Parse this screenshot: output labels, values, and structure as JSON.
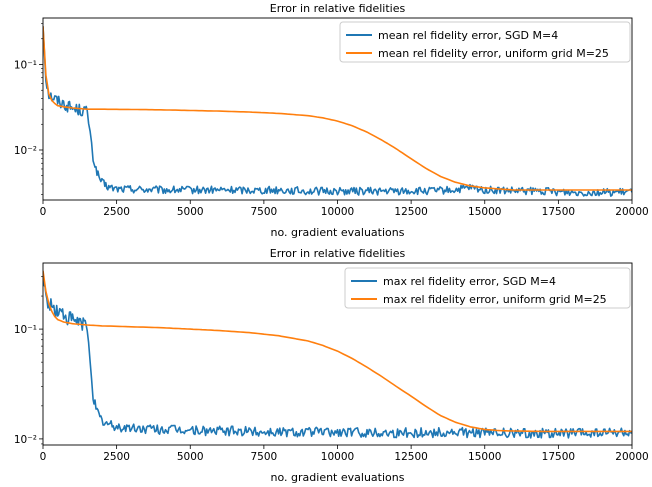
{
  "chart_data": [
    {
      "type": "line",
      "title": "Error in relative fidelities",
      "xlabel": "no. gradient evaluations",
      "ylabel": "",
      "yscale": "log",
      "xlim": [
        0,
        20000
      ],
      "ylim": [
        0.0026,
        0.35
      ],
      "xticks": [
        0,
        2500,
        5000,
        7500,
        10000,
        12500,
        15000,
        17500,
        20000
      ],
      "xtick_labels": [
        "0",
        "2500",
        "5000",
        "7500",
        "10000",
        "12500",
        "15000",
        "17500",
        "20000"
      ],
      "yticks_major": [
        0.01,
        0.1
      ],
      "ytick_labels": [
        "10⁻²",
        "10⁻¹"
      ],
      "grid": false,
      "legend_position": "top-right",
      "series": [
        {
          "name": "mean rel fidelity error, SGD M=4",
          "color": "#1f77b4",
          "x": [
            0,
            100,
            200,
            300,
            400,
            500,
            600,
            700,
            800,
            900,
            1000,
            1100,
            1200,
            1300,
            1400,
            1500,
            1550,
            1600,
            1650,
            1700,
            1800,
            1900,
            2000,
            2100,
            2200,
            2300,
            2500,
            3000,
            4000,
            5000,
            6000,
            7000,
            8000,
            9000,
            10000,
            11000,
            12000,
            13000,
            14000,
            14500,
            15000,
            16000,
            17000,
            18000,
            19000,
            20000
          ],
          "y": [
            0.28,
            0.07,
            0.045,
            0.042,
            0.04,
            0.038,
            0.036,
            0.035,
            0.033,
            0.032,
            0.031,
            0.03,
            0.03,
            0.029,
            0.029,
            0.028,
            0.022,
            0.016,
            0.011,
            0.008,
            0.006,
            0.0048,
            0.0042,
            0.0039,
            0.0037,
            0.0036,
            0.0035,
            0.0035,
            0.0034,
            0.0034,
            0.0034,
            0.0034,
            0.0034,
            0.0033,
            0.0033,
            0.0033,
            0.0033,
            0.0033,
            0.0034,
            0.0036,
            0.0034,
            0.0033,
            0.0033,
            0.0032,
            0.0032,
            0.0032
          ]
        },
        {
          "name": "mean rel fidelity error, uniform grid M=25",
          "color": "#ff7f0e",
          "x": [
            0,
            100,
            200,
            300,
            400,
            500,
            700,
            1000,
            1500,
            2000,
            3000,
            4000,
            5000,
            6000,
            7000,
            8000,
            9000,
            9500,
            10000,
            10500,
            11000,
            11500,
            12000,
            12500,
            13000,
            13500,
            14000,
            14500,
            15000,
            15500,
            16000,
            17000,
            18000,
            19000,
            20000
          ],
          "y": [
            0.28,
            0.075,
            0.045,
            0.038,
            0.035,
            0.033,
            0.032,
            0.031,
            0.03,
            0.03,
            0.0298,
            0.0295,
            0.029,
            0.0285,
            0.0278,
            0.0268,
            0.0252,
            0.0238,
            0.0218,
            0.0192,
            0.0162,
            0.0131,
            0.0103,
            0.0079,
            0.0061,
            0.0049,
            0.0042,
            0.0038,
            0.0036,
            0.0035,
            0.0034,
            0.0034,
            0.0034,
            0.0034,
            0.0034
          ]
        }
      ]
    },
    {
      "type": "line",
      "title": "Error in relative fidelities",
      "xlabel": "no. gradient evaluations",
      "ylabel": "",
      "yscale": "log",
      "xlim": [
        0,
        20000
      ],
      "ylim": [
        0.0088,
        0.4
      ],
      "xticks": [
        0,
        2500,
        5000,
        7500,
        10000,
        12500,
        15000,
        17500,
        20000
      ],
      "xtick_labels": [
        "0",
        "2500",
        "5000",
        "7500",
        "10000",
        "12500",
        "15000",
        "17500",
        "20000"
      ],
      "yticks_major": [
        0.01,
        0.1
      ],
      "ytick_labels": [
        "10⁻²",
        "10⁻¹"
      ],
      "grid": false,
      "legend_position": "top-right",
      "series": [
        {
          "name": "max rel fidelity error, SGD M=4",
          "color": "#1f77b4",
          "x": [
            0,
            100,
            200,
            300,
            400,
            500,
            600,
            700,
            800,
            900,
            1000,
            1100,
            1200,
            1300,
            1400,
            1500,
            1550,
            1600,
            1650,
            1700,
            1800,
            1900,
            2000,
            2200,
            2500,
            3000,
            4000,
            5000,
            6000,
            7000,
            8000,
            9000,
            10000,
            11000,
            12000,
            13000,
            14000,
            15000,
            16000,
            17000,
            18000,
            19000,
            20000
          ],
          "y": [
            0.3,
            0.19,
            0.17,
            0.16,
            0.15,
            0.145,
            0.14,
            0.135,
            0.13,
            0.125,
            0.12,
            0.118,
            0.115,
            0.112,
            0.11,
            0.105,
            0.08,
            0.055,
            0.035,
            0.025,
            0.019,
            0.016,
            0.0145,
            0.0135,
            0.0128,
            0.0125,
            0.0122,
            0.012,
            0.0118,
            0.0117,
            0.0116,
            0.0116,
            0.0115,
            0.0115,
            0.0114,
            0.0114,
            0.0114,
            0.0114,
            0.0113,
            0.0113,
            0.0113,
            0.0113,
            0.0113
          ]
        },
        {
          "name": "max rel fidelity error, uniform grid M=25",
          "color": "#ff7f0e",
          "x": [
            0,
            100,
            200,
            300,
            400,
            500,
            700,
            1000,
            1500,
            2000,
            3000,
            4000,
            5000,
            6000,
            7000,
            8000,
            9000,
            9500,
            10000,
            10500,
            11000,
            11500,
            12000,
            12500,
            13000,
            13500,
            14000,
            14500,
            15000,
            15500,
            16000,
            17000,
            18000,
            19000,
            20000
          ],
          "y": [
            0.34,
            0.22,
            0.17,
            0.145,
            0.13,
            0.122,
            0.116,
            0.112,
            0.109,
            0.107,
            0.105,
            0.103,
            0.1,
            0.097,
            0.093,
            0.087,
            0.078,
            0.071,
            0.063,
            0.054,
            0.045,
            0.037,
            0.03,
            0.0245,
            0.0198,
            0.0163,
            0.0142,
            0.0129,
            0.0122,
            0.0119,
            0.0118,
            0.0117,
            0.0117,
            0.0117,
            0.0117
          ]
        }
      ]
    }
  ]
}
